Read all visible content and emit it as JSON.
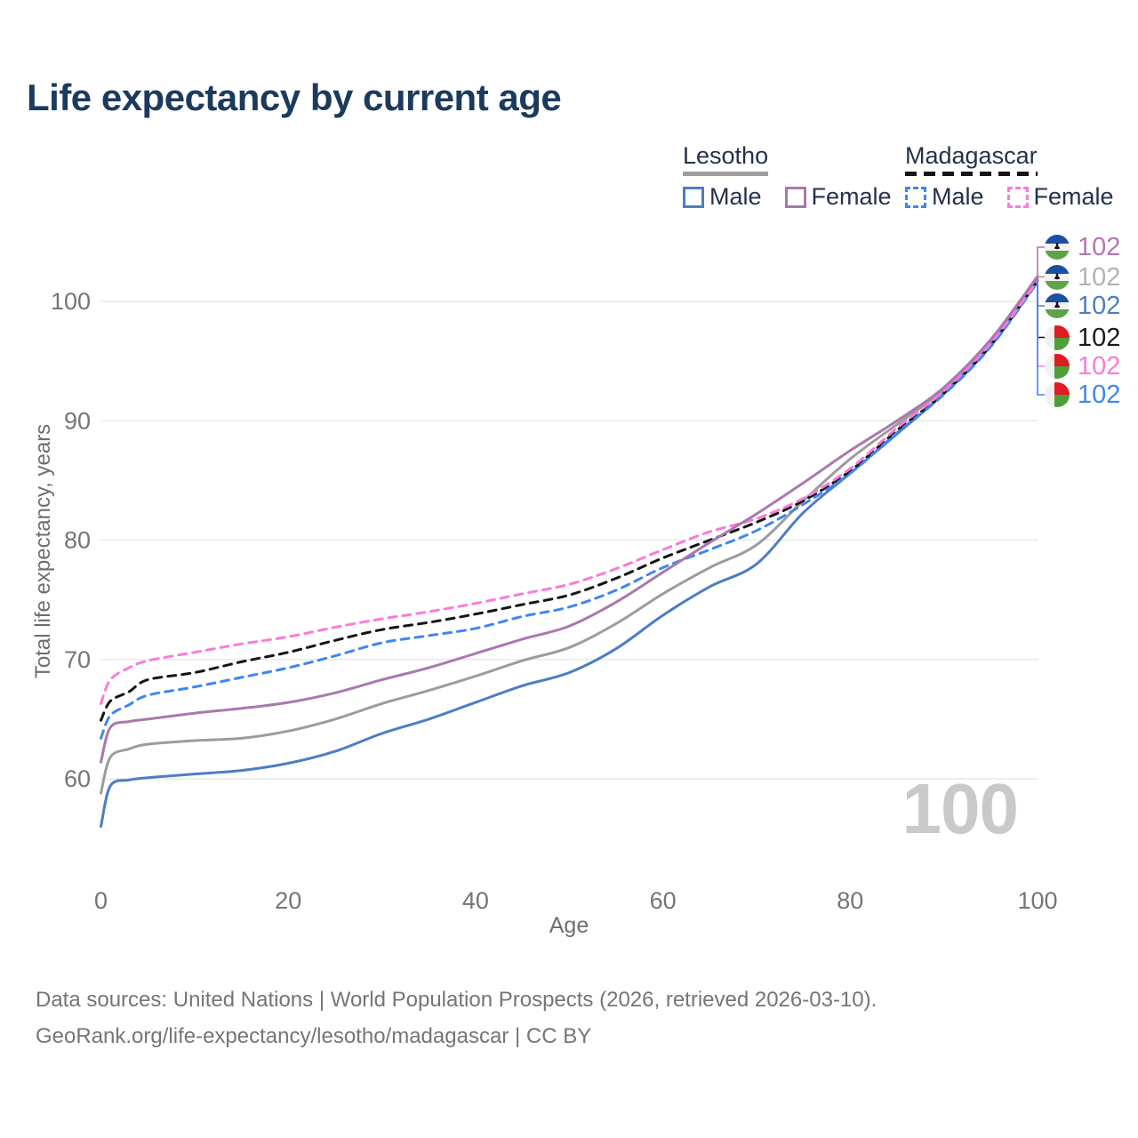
{
  "title": "Life expectancy by current age",
  "legend": {
    "groups": [
      {
        "name": "Lesotho",
        "line_style": "solid",
        "underline_color": "#9e9e9e",
        "items": [
          {
            "label": "Male",
            "color": "#4d7dc4",
            "dashed": false
          },
          {
            "label": "Female",
            "color": "#a978ae",
            "dashed": false
          }
        ]
      },
      {
        "name": "Madagascar",
        "line_style": "dashed",
        "underline_color": "#151515",
        "items": [
          {
            "label": "Male",
            "color": "#3e86f2",
            "dashed": true
          },
          {
            "label": "Female",
            "color": "#fb7ad8",
            "dashed": true
          }
        ]
      }
    ]
  },
  "chart_data": {
    "type": "line",
    "title": "Life expectancy by current age",
    "xlabel": "Age",
    "ylabel": "Total life expectancy, years",
    "xlim": [
      0,
      100
    ],
    "ylim": [
      55,
      103
    ],
    "xticks": [
      0,
      20,
      40,
      60,
      80,
      100
    ],
    "yticks": [
      60,
      70,
      80,
      90,
      100
    ],
    "xtick_labels": [
      "0",
      "20",
      "40",
      "60",
      "80",
      "100"
    ],
    "ytick_labels": [
      "60",
      "70",
      "80",
      "90",
      "100"
    ],
    "grid": "horizontal",
    "legend_position": "top-right",
    "x": [
      0,
      1,
      3,
      5,
      10,
      15,
      20,
      25,
      30,
      35,
      40,
      45,
      50,
      55,
      60,
      65,
      70,
      75,
      80,
      85,
      90,
      95,
      100
    ],
    "series": [
      {
        "name": "Lesotho Male",
        "color": "#4d7dc4",
        "dash": "solid",
        "values": [
          56.0,
          59.4,
          59.9,
          60.1,
          60.4,
          60.7,
          61.3,
          62.3,
          63.8,
          65.0,
          66.4,
          67.8,
          68.9,
          70.9,
          73.7,
          76.1,
          78.0,
          82.3,
          85.6,
          88.9,
          92.3,
          96.4,
          101.8
        ]
      },
      {
        "name": "Lesotho Female",
        "color": "#a978ae",
        "dash": "solid",
        "values": [
          61.4,
          64.3,
          64.8,
          65.0,
          65.5,
          65.9,
          66.4,
          67.2,
          68.3,
          69.3,
          70.5,
          71.7,
          72.8,
          74.8,
          77.3,
          79.8,
          82.2,
          84.8,
          87.5,
          90.0,
          92.8,
          96.8,
          102.1
        ]
      },
      {
        "name": "Lesotho Both sexes",
        "color": "#9c9c9c",
        "dash": "solid",
        "values": [
          58.8,
          61.8,
          62.5,
          62.9,
          63.2,
          63.4,
          64.0,
          65.0,
          66.3,
          67.4,
          68.6,
          69.9,
          71.0,
          73.0,
          75.5,
          77.7,
          79.6,
          83.3,
          86.8,
          89.7,
          92.6,
          96.6,
          102.0
        ]
      },
      {
        "name": "Madagascar Male",
        "color": "#3e86f2",
        "dash": "dashed",
        "values": [
          63.4,
          65.3,
          66.2,
          67.0,
          67.7,
          68.5,
          69.3,
          70.3,
          71.4,
          72.0,
          72.6,
          73.6,
          74.4,
          75.8,
          77.7,
          79.2,
          80.8,
          83.0,
          85.6,
          89.0,
          92.2,
          96.2,
          101.6
        ]
      },
      {
        "name": "Madagascar Female",
        "color": "#fb7ad8",
        "dash": "dashed",
        "values": [
          66.3,
          68.3,
          69.3,
          69.9,
          70.6,
          71.3,
          71.9,
          72.7,
          73.4,
          74.0,
          74.7,
          75.5,
          76.3,
          77.6,
          79.2,
          80.7,
          81.8,
          83.5,
          86.0,
          89.4,
          92.5,
          96.5,
          101.7
        ]
      },
      {
        "name": "Madagascar Both sexes",
        "color": "#141414",
        "dash": "dashed",
        "values": [
          64.9,
          66.5,
          67.3,
          68.3,
          68.9,
          69.8,
          70.6,
          71.6,
          72.5,
          73.1,
          73.8,
          74.6,
          75.4,
          76.8,
          78.5,
          80.0,
          81.5,
          83.3,
          85.8,
          89.2,
          92.3,
          96.3,
          101.7
        ]
      }
    ]
  },
  "end_labels": [
    {
      "flag": "lesotho",
      "series": "Lesotho Female",
      "value": "102",
      "color": "#b277b2"
    },
    {
      "flag": "lesotho",
      "series": "Lesotho Both sexes",
      "value": "102",
      "color": "#b3b3b3"
    },
    {
      "flag": "lesotho",
      "series": "Lesotho Male",
      "value": "102",
      "color": "#4d7dc4"
    },
    {
      "flag": "madagascar",
      "series": "Madagascar Both sexes",
      "value": "102",
      "color": "#1a1a1a"
    },
    {
      "flag": "madagascar",
      "series": "Madagascar Female",
      "value": "102",
      "color": "#fb7ad8"
    },
    {
      "flag": "madagascar",
      "series": "Madagascar Male",
      "value": "102",
      "color": "#3e86f2"
    }
  ],
  "watermark": "100",
  "footer": {
    "line1": "Data sources: United Nations | World Population Prospects (2026, retrieved 2026-03-10).",
    "line2": "GeoRank.org/life-expectancy/lesotho/madagascar | CC BY"
  }
}
